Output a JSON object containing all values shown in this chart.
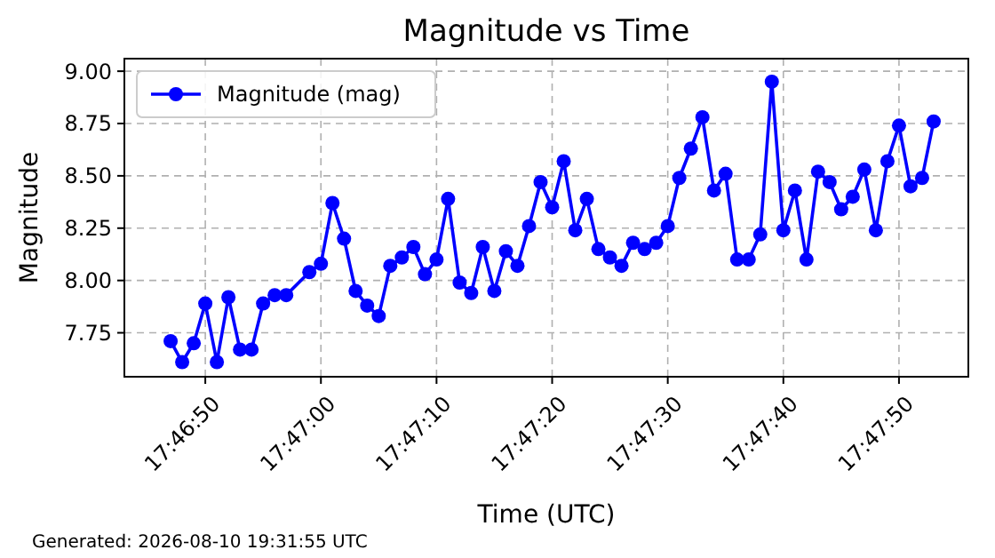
{
  "chart_data": {
    "type": "line",
    "title": "Magnitude vs Time",
    "xlabel": "Time (UTC)",
    "ylabel": "Magnitude",
    "annotations": [
      "Generated: 2026-08-10 19:31:55 UTC"
    ],
    "x": [
      "2026-08-10T17:46:47",
      "2026-08-10T17:46:48",
      "2026-08-10T17:46:49",
      "2026-08-10T17:46:50",
      "2026-08-10T17:46:51",
      "2026-08-10T17:46:52",
      "2026-08-10T17:46:53",
      "2026-08-10T17:46:54",
      "2026-08-10T17:46:55",
      "2026-08-10T17:46:56",
      "2026-08-10T17:46:57",
      "2026-08-10T17:46:59",
      "2026-08-10T17:47:00",
      "2026-08-10T17:47:01",
      "2026-08-10T17:47:02",
      "2026-08-10T17:47:03",
      "2026-08-10T17:47:04",
      "2026-08-10T17:47:05",
      "2026-08-10T17:47:06",
      "2026-08-10T17:47:07",
      "2026-08-10T17:47:08",
      "2026-08-10T17:47:09",
      "2026-08-10T17:47:10",
      "2026-08-10T17:47:11",
      "2026-08-10T17:47:12",
      "2026-08-10T17:47:13",
      "2026-08-10T17:47:14",
      "2026-08-10T17:47:15",
      "2026-08-10T17:47:16",
      "2026-08-10T17:47:17",
      "2026-08-10T17:47:18",
      "2026-08-10T17:47:19",
      "2026-08-10T17:47:20",
      "2026-08-10T17:47:21",
      "2026-08-10T17:47:22",
      "2026-08-10T17:47:23",
      "2026-08-10T17:47:24",
      "2026-08-10T17:47:25",
      "2026-08-10T17:47:26",
      "2026-08-10T17:47:27",
      "2026-08-10T17:47:28",
      "2026-08-10T17:47:29",
      "2026-08-10T17:47:30",
      "2026-08-10T17:47:31",
      "2026-08-10T17:47:32",
      "2026-08-10T17:47:33",
      "2026-08-10T17:47:34",
      "2026-08-10T17:47:35",
      "2026-08-10T17:47:36",
      "2026-08-10T17:47:37",
      "2026-08-10T17:47:38",
      "2026-08-10T17:47:39",
      "2026-08-10T17:47:40",
      "2026-08-10T17:47:41",
      "2026-08-10T17:47:42",
      "2026-08-10T17:47:43",
      "2026-08-10T17:47:44",
      "2026-08-10T17:47:45",
      "2026-08-10T17:47:46",
      "2026-08-10T17:47:47",
      "2026-08-10T17:47:48",
      "2026-08-10T17:47:49",
      "2026-08-10T17:47:50",
      "2026-08-10T17:47:51",
      "2026-08-10T17:47:52",
      "2026-08-10T17:47:53"
    ],
    "series": [
      {
        "name": "Magnitude (mag)",
        "color": "#0000ff",
        "values": [
          7.71,
          7.61,
          7.7,
          7.89,
          7.61,
          7.92,
          7.67,
          7.67,
          7.89,
          7.93,
          7.93,
          8.04,
          8.08,
          8.37,
          8.2,
          7.95,
          7.88,
          7.83,
          8.07,
          8.11,
          8.16,
          8.03,
          8.1,
          8.39,
          7.99,
          7.94,
          8.16,
          7.95,
          8.14,
          8.07,
          8.26,
          8.47,
          8.35,
          8.57,
          8.24,
          8.39,
          8.15,
          8.11,
          8.07,
          8.18,
          8.15,
          8.18,
          8.26,
          8.49,
          8.63,
          8.78,
          8.43,
          8.51,
          8.1,
          8.1,
          8.22,
          8.95,
          8.24,
          8.43,
          8.1,
          8.52,
          8.47,
          8.34,
          8.4,
          8.53,
          8.24,
          8.57,
          8.74,
          8.45,
          8.49,
          8.76
        ]
      }
    ],
    "xlim": [
      "2026-08-10T17:46:43",
      "2026-08-10T17:47:56"
    ],
    "xticks": [
      {
        "value": "2026-08-10T17:46:50",
        "label": "17:46:50"
      },
      {
        "value": "2026-08-10T17:47:00",
        "label": "17:47:00"
      },
      {
        "value": "2026-08-10T17:47:10",
        "label": "17:47:10"
      },
      {
        "value": "2026-08-10T17:47:20",
        "label": "17:47:20"
      },
      {
        "value": "2026-08-10T17:47:30",
        "label": "17:47:30"
      },
      {
        "value": "2026-08-10T17:47:40",
        "label": "17:47:40"
      },
      {
        "value": "2026-08-10T17:47:50",
        "label": "17:47:50"
      }
    ],
    "ylim": [
      7.54,
      9.06
    ],
    "yticks": [
      {
        "value": 7.75,
        "label": "7.75"
      },
      {
        "value": 8.0,
        "label": "8.00"
      },
      {
        "value": 8.25,
        "label": "8.25"
      },
      {
        "value": 8.5,
        "label": "8.50"
      },
      {
        "value": 8.75,
        "label": "8.75"
      },
      {
        "value": 9.0,
        "label": "9.00"
      }
    ],
    "grid": true,
    "legend": "top left",
    "marker": "circle",
    "line_style": "solid"
  }
}
